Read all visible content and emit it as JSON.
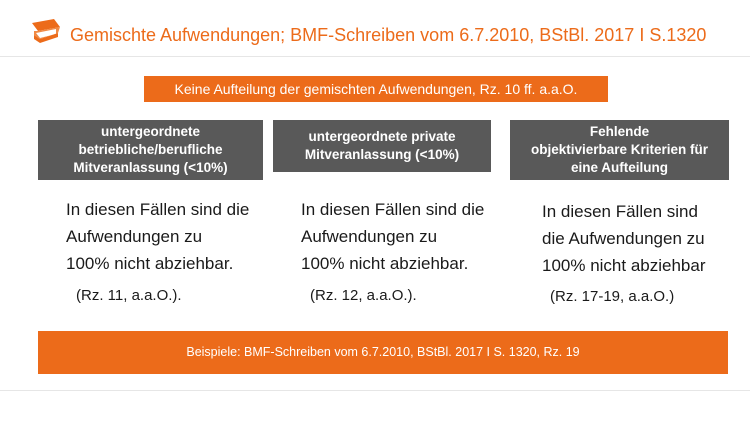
{
  "header": {
    "title": "Gemischte Aufwendungen; BMF-Schreiben vom 6.7.2010, BStBl. 2017 I S.1320",
    "logo_icon": "book-cap-icon",
    "accent_color": "#ec6b1a"
  },
  "top_banner": {
    "text": "Keine Aufteilung der gemischten Aufwendungen, Rz. 10 ff. a.a.O."
  },
  "columns": [
    {
      "heading": [
        "untergeordnete",
        "betriebliche/berufliche",
        "Mitveranlassung (<10%)"
      ],
      "body": [
        "In diesen Fällen sind die",
        "Aufwendungen zu",
        "100% nicht abziehbar."
      ],
      "reference": "(Rz. 11, a.a.O.)."
    },
    {
      "heading": [
        "untergeordnete private",
        "Mitveranlassung (<10%)"
      ],
      "body": [
        "In diesen Fällen sind die",
        "Aufwendungen zu",
        "100% nicht abziehbar."
      ],
      "reference": "(Rz. 12, a.a.O.)."
    },
    {
      "heading": [
        "Fehlende",
        "objektivierbare Kriterien für",
        "eine Aufteilung"
      ],
      "body": [
        "In diesen Fällen sind",
        "die Aufwendungen zu",
        "100% nicht abziehbar"
      ],
      "reference": "(Rz. 17-19, a.a.O.)"
    }
  ],
  "bottom_banner": {
    "text": "Beispiele: BMF-Schreiben vom 6.7.2010, BStBl. 2017 I S. 1320, Rz. 19"
  },
  "colors": {
    "orange": "#ec6b1a",
    "heading_gray": "#595959"
  }
}
